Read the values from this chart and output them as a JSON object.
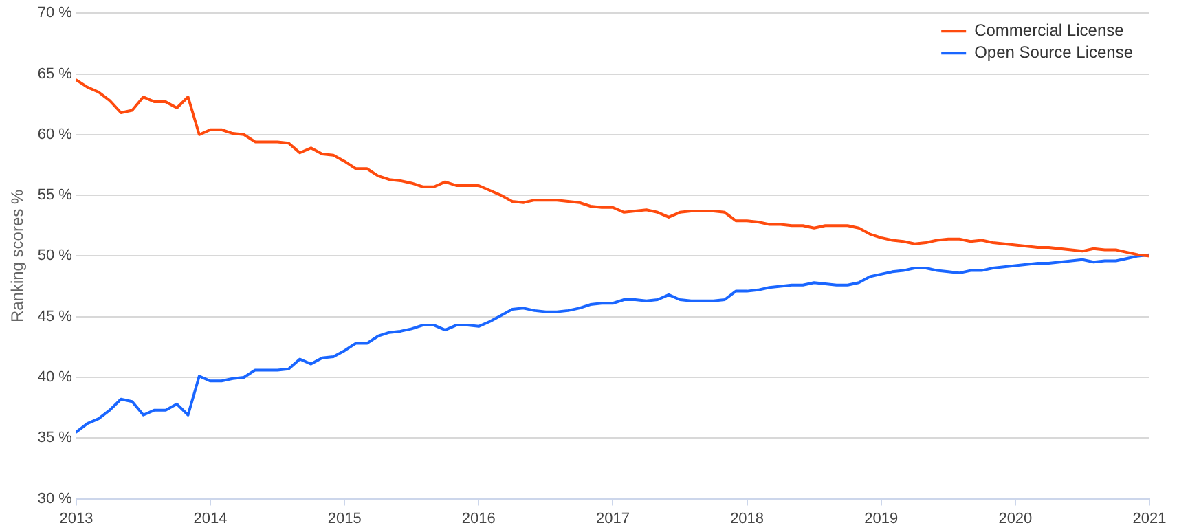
{
  "chart_data": {
    "type": "line",
    "ylabel": "Ranking scores %",
    "x": [
      "2013-01",
      "2013-02",
      "2013-03",
      "2013-04",
      "2013-05",
      "2013-06",
      "2013-07",
      "2013-08",
      "2013-09",
      "2013-10",
      "2013-11",
      "2013-12",
      "2014-01",
      "2014-02",
      "2014-03",
      "2014-04",
      "2014-05",
      "2014-06",
      "2014-07",
      "2014-08",
      "2014-09",
      "2014-10",
      "2014-11",
      "2014-12",
      "2015-01",
      "2015-02",
      "2015-03",
      "2015-04",
      "2015-05",
      "2015-06",
      "2015-07",
      "2015-08",
      "2015-09",
      "2015-10",
      "2015-11",
      "2015-12",
      "2016-01",
      "2016-02",
      "2016-03",
      "2016-04",
      "2016-05",
      "2016-06",
      "2016-07",
      "2016-08",
      "2016-09",
      "2016-10",
      "2016-11",
      "2016-12",
      "2017-01",
      "2017-02",
      "2017-03",
      "2017-04",
      "2017-05",
      "2017-06",
      "2017-07",
      "2017-08",
      "2017-09",
      "2017-10",
      "2017-11",
      "2017-12",
      "2018-01",
      "2018-02",
      "2018-03",
      "2018-04",
      "2018-05",
      "2018-06",
      "2018-07",
      "2018-08",
      "2018-09",
      "2018-10",
      "2018-11",
      "2018-12",
      "2019-01",
      "2019-02",
      "2019-03",
      "2019-04",
      "2019-05",
      "2019-06",
      "2019-07",
      "2019-08",
      "2019-09",
      "2019-10",
      "2019-11",
      "2019-12",
      "2020-01",
      "2020-02",
      "2020-03",
      "2020-04",
      "2020-05",
      "2020-06",
      "2020-07",
      "2020-08",
      "2020-09",
      "2020-10",
      "2020-11",
      "2020-12",
      "2021-01"
    ],
    "series": [
      {
        "name": "Commercial License",
        "color": "#fe4b0e",
        "values": [
          64.5,
          63.9,
          63.5,
          62.8,
          61.8,
          62.0,
          63.1,
          62.7,
          62.7,
          62.2,
          63.1,
          60.0,
          60.4,
          60.4,
          60.1,
          60.0,
          59.4,
          59.4,
          59.4,
          59.3,
          58.5,
          58.9,
          58.4,
          58.3,
          57.8,
          57.2,
          57.2,
          56.6,
          56.3,
          56.2,
          56.0,
          55.7,
          55.7,
          56.1,
          55.8,
          55.8,
          55.8,
          55.4,
          55.0,
          54.5,
          54.4,
          54.6,
          54.6,
          54.6,
          54.5,
          54.4,
          54.1,
          54.0,
          54.0,
          53.6,
          53.7,
          53.8,
          53.6,
          53.2,
          53.6,
          53.7,
          53.7,
          53.7,
          53.6,
          52.9,
          52.9,
          52.8,
          52.6,
          52.6,
          52.5,
          52.5,
          52.3,
          52.5,
          52.5,
          52.5,
          52.3,
          51.8,
          51.5,
          51.3,
          51.2,
          51.0,
          51.1,
          51.3,
          51.4,
          51.4,
          51.2,
          51.3,
          51.1,
          51.0,
          50.9,
          50.8,
          50.7,
          50.7,
          50.6,
          50.5,
          50.4,
          50.6,
          50.5,
          50.5,
          50.3,
          50.1,
          50.0
        ]
      },
      {
        "name": "Open Source License",
        "color": "#1a66ff",
        "values": [
          35.5,
          36.2,
          36.6,
          37.3,
          38.2,
          38.0,
          36.9,
          37.3,
          37.3,
          37.8,
          36.9,
          40.1,
          39.7,
          39.7,
          39.9,
          40.0,
          40.6,
          40.6,
          40.6,
          40.7,
          41.5,
          41.1,
          41.6,
          41.7,
          42.2,
          42.8,
          42.8,
          43.4,
          43.7,
          43.8,
          44.0,
          44.3,
          44.3,
          43.9,
          44.3,
          44.3,
          44.2,
          44.6,
          45.1,
          45.6,
          45.7,
          45.5,
          45.4,
          45.4,
          45.5,
          45.7,
          46.0,
          46.1,
          46.1,
          46.4,
          46.4,
          46.3,
          46.4,
          46.8,
          46.4,
          46.3,
          46.3,
          46.3,
          46.4,
          47.1,
          47.1,
          47.2,
          47.4,
          47.5,
          47.6,
          47.6,
          47.8,
          47.7,
          47.6,
          47.6,
          47.8,
          48.3,
          48.5,
          48.7,
          48.8,
          49.0,
          49.0,
          48.8,
          48.7,
          48.6,
          48.8,
          48.8,
          49.0,
          49.1,
          49.2,
          49.3,
          49.4,
          49.4,
          49.5,
          49.6,
          49.7,
          49.5,
          49.6,
          49.6,
          49.8,
          50.0,
          50.1
        ]
      }
    ],
    "xlim": [
      "2013-01",
      "2021-01"
    ],
    "xticks": [
      "2013",
      "2014",
      "2015",
      "2016",
      "2017",
      "2018",
      "2019",
      "2020",
      "2021"
    ],
    "ylim": [
      30,
      70
    ],
    "yticks": [
      {
        "value": 30,
        "label": "30 %"
      },
      {
        "value": 35,
        "label": "35 %"
      },
      {
        "value": 40,
        "label": "40 %"
      },
      {
        "value": 45,
        "label": "45 %"
      },
      {
        "value": 50,
        "label": "50 %"
      },
      {
        "value": 55,
        "label": "55 %"
      },
      {
        "value": 60,
        "label": "60 %"
      },
      {
        "value": 65,
        "label": "65 %"
      },
      {
        "value": 70,
        "label": "70 %"
      }
    ],
    "grid": "y",
    "legend": "top right",
    "marker": "none",
    "line_style": "solid"
  }
}
